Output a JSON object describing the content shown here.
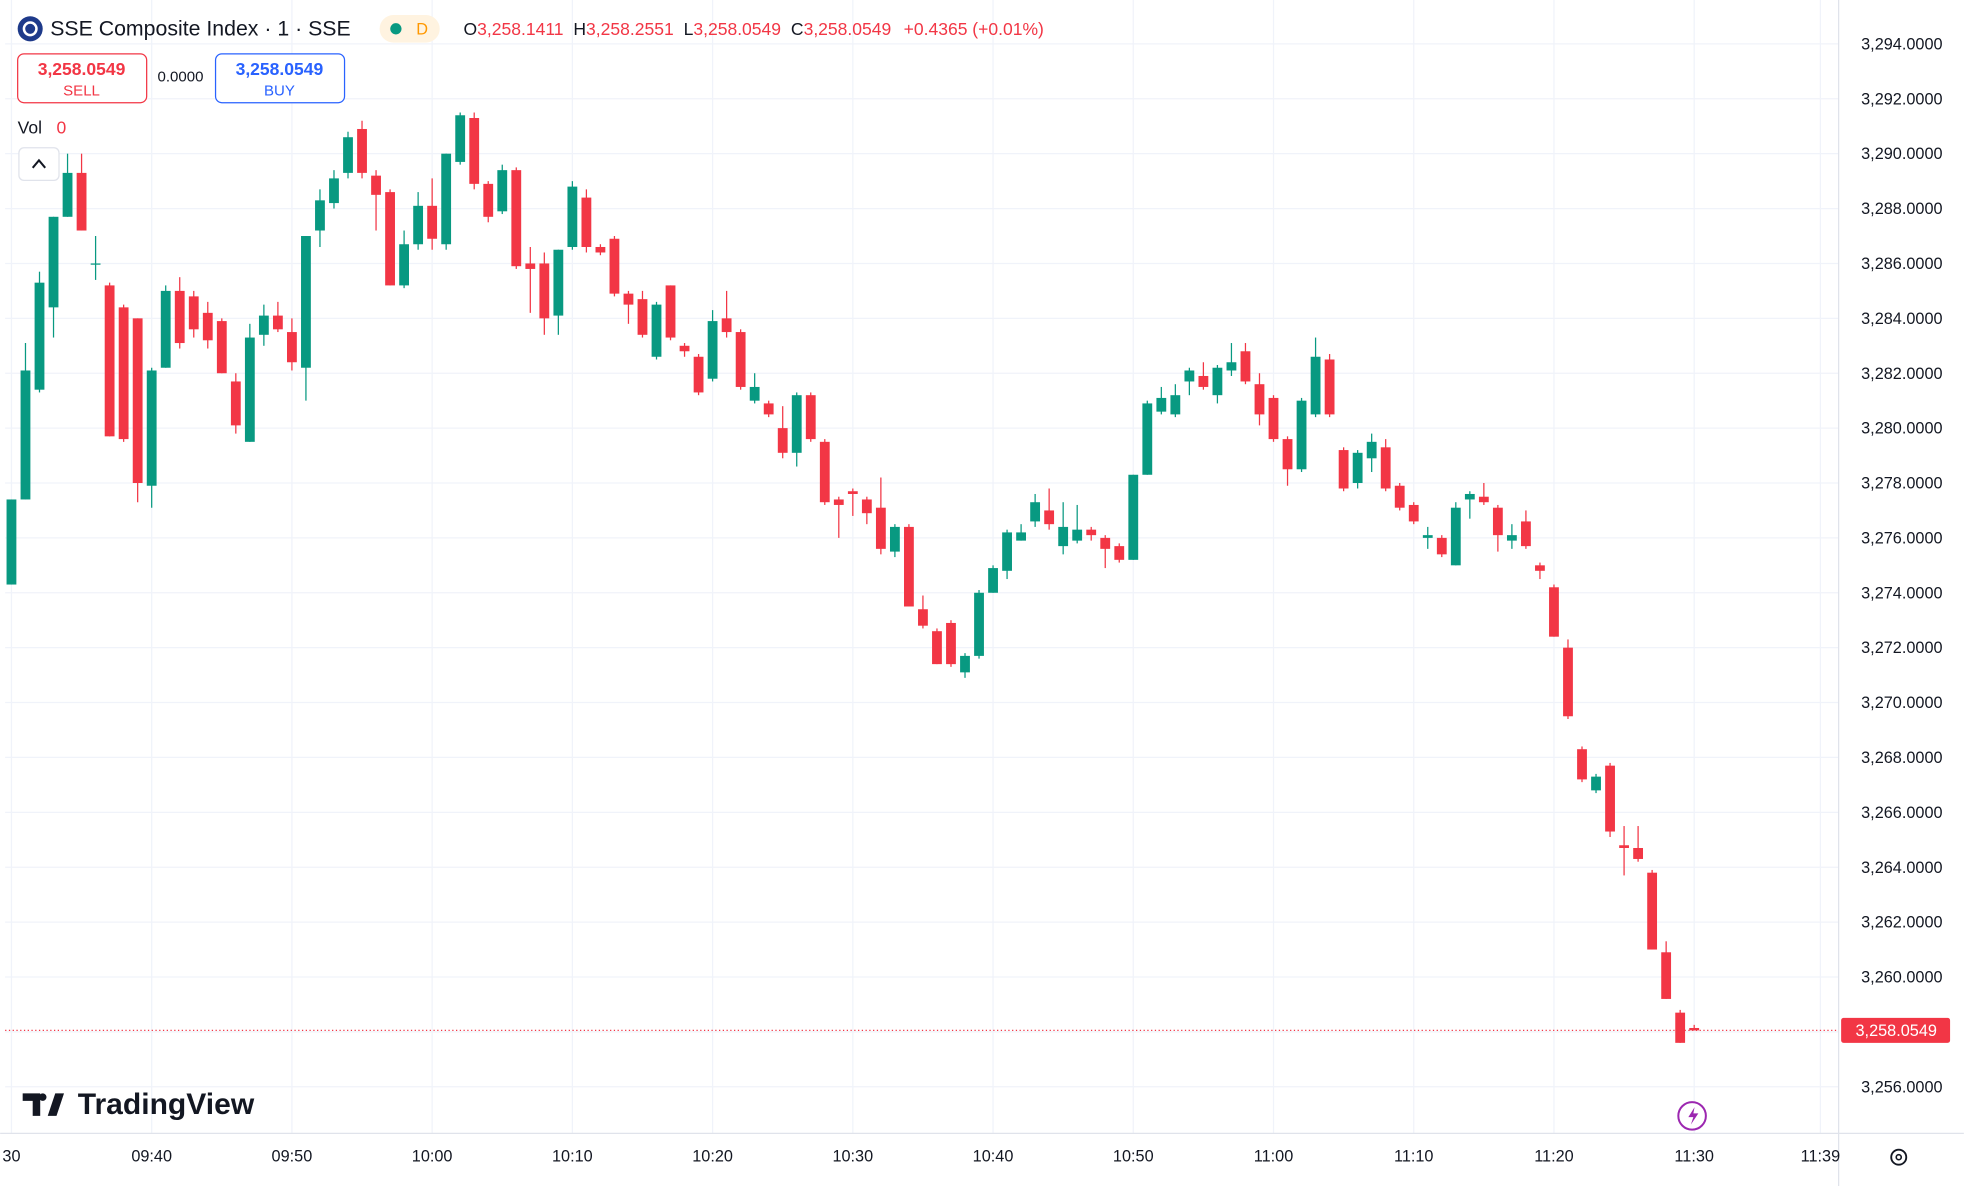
{
  "header": {
    "symbol": "SSE Composite Index · 1 · SSE",
    "status": "D",
    "o_label": "O",
    "open": "3,258.1411",
    "h_label": "H",
    "high": "3,258.2551",
    "l_label": "L",
    "low": "3,258.0549",
    "c_label": "C",
    "close": "3,258.0549",
    "change": "+0.4365 (+0.01%)"
  },
  "trade": {
    "sell_price": "3,258.0549",
    "sell": "SELL",
    "spread": "0.0000",
    "buy_price": "3,258.0549",
    "buy": "BUY"
  },
  "volume": {
    "label": "Vol",
    "value": "0"
  },
  "brand": "TradingView",
  "chart_data": {
    "type": "candlestick",
    "x": [
      570,
      571,
      572,
      573,
      574,
      575,
      576,
      577,
      578,
      579,
      580,
      581,
      582,
      583,
      584,
      585,
      586,
      587,
      588,
      589,
      590,
      591,
      592,
      593,
      594,
      595,
      596,
      597,
      598,
      599,
      600,
      601,
      602,
      603,
      604,
      605,
      606,
      607,
      608,
      609,
      610,
      611,
      612,
      613,
      614,
      615,
      616,
      617,
      618,
      619,
      620,
      621,
      622,
      623,
      624,
      625,
      626,
      627,
      628,
      629,
      630,
      631,
      632,
      633,
      634,
      635,
      636,
      637,
      638,
      639,
      640,
      641,
      642,
      643,
      644,
      645,
      646,
      647,
      648,
      649,
      650,
      651,
      652,
      653,
      654,
      655,
      656,
      657,
      658,
      659,
      660,
      661,
      662,
      663,
      664,
      665,
      666,
      667,
      668,
      669,
      670,
      671,
      672,
      673,
      674,
      675,
      676,
      677,
      678,
      679,
      680,
      681,
      682,
      683,
      684,
      685,
      686,
      687,
      688,
      689,
      690
    ],
    "open": [
      3274.3,
      3277.4,
      3281.4,
      3284.4,
      3287.7,
      3289.3,
      3286.0,
      3285.2,
      3284.4,
      3284.0,
      3277.9,
      3282.2,
      3285.0,
      3284.8,
      3284.2,
      3283.9,
      3281.7,
      3279.5,
      3283.4,
      3284.1,
      3283.5,
      3282.2,
      3287.2,
      3288.2,
      3289.3,
      3290.9,
      3289.2,
      3288.6,
      3285.2,
      3286.7,
      3288.1,
      3286.7,
      3289.7,
      3291.3,
      3288.9,
      3287.9,
      3289.4,
      3286.0,
      3286.0,
      3284.1,
      3286.6,
      3288.4,
      3286.6,
      3286.9,
      3284.9,
      3284.7,
      3282.6,
      3285.2,
      3283.0,
      3282.6,
      3281.8,
      3284.0,
      3283.5,
      3281.0,
      3280.9,
      3280.0,
      3279.1,
      3281.2,
      3279.5,
      3277.4,
      3277.7,
      3277.4,
      3277.1,
      3275.5,
      3276.4,
      3273.4,
      3272.6,
      3272.9,
      3271.1,
      3271.7,
      3274.0,
      3274.8,
      3275.9,
      3276.6,
      3277.0,
      3275.7,
      3275.9,
      3276.3,
      3276.0,
      3275.7,
      3275.2,
      3278.3,
      3280.6,
      3280.5,
      3281.7,
      3281.9,
      3281.2,
      3282.1,
      3282.8,
      3281.6,
      3281.1,
      3279.6,
      3278.5,
      3280.5,
      3282.5,
      3279.2,
      3278.0,
      3278.9,
      3279.3,
      3277.9,
      3277.2,
      3276.0,
      3276.0,
      3275.0,
      3277.4,
      3277.5,
      3277.1,
      3275.9,
      3276.6,
      3275.0,
      3274.2,
      3272.0,
      3268.3,
      3266.8,
      3267.7,
      3264.8,
      3264.7,
      3263.8,
      3260.9,
      3258.7,
      3258.1411
    ],
    "high": [
      3277.4,
      3283.1,
      3285.7,
      3287.7,
      3290.0,
      3290.0,
      3287.0,
      3285.3,
      3284.5,
      3284.0,
      3282.2,
      3285.2,
      3285.5,
      3285.0,
      3284.6,
      3284.0,
      3282.0,
      3283.8,
      3284.5,
      3284.6,
      3284.0,
      3287.0,
      3288.7,
      3289.4,
      3290.8,
      3291.2,
      3289.4,
      3288.7,
      3287.2,
      3288.6,
      3289.1,
      3290.0,
      3291.5,
      3291.5,
      3289.0,
      3289.6,
      3289.5,
      3286.6,
      3286.4,
      3286.5,
      3289.0,
      3288.7,
      3286.7,
      3287.0,
      3285.0,
      3285.0,
      3284.6,
      3285.2,
      3283.1,
      3282.7,
      3284.3,
      3285.0,
      3283.6,
      3282.0,
      3281.0,
      3280.8,
      3281.3,
      3281.3,
      3279.6,
      3277.5,
      3277.8,
      3277.5,
      3278.2,
      3276.5,
      3276.5,
      3273.9,
      3272.7,
      3273.0,
      3271.8,
      3274.1,
      3275.0,
      3276.3,
      3276.5,
      3277.6,
      3277.8,
      3277.3,
      3277.2,
      3276.4,
      3276.1,
      3275.8,
      3278.3,
      3281.0,
      3281.5,
      3281.6,
      3282.2,
      3282.4,
      3282.3,
      3283.1,
      3283.1,
      3282.0,
      3281.2,
      3279.7,
      3281.1,
      3283.3,
      3282.7,
      3279.3,
      3279.2,
      3279.8,
      3279.6,
      3278.0,
      3277.3,
      3276.4,
      3276.1,
      3277.3,
      3277.7,
      3278.0,
      3277.2,
      3276.5,
      3277.0,
      3275.1,
      3274.3,
      3272.3,
      3268.4,
      3267.4,
      3267.8,
      3265.5,
      3265.5,
      3263.9,
      3261.3,
      3258.8,
      3258.2551
    ],
    "low": [
      3274.3,
      3277.4,
      3281.3,
      3283.3,
      3287.7,
      3287.2,
      3285.4,
      3279.7,
      3279.5,
      3277.3,
      3277.1,
      3282.2,
      3282.9,
      3283.3,
      3282.9,
      3282.0,
      3279.8,
      3279.5,
      3283.0,
      3283.5,
      3282.1,
      3281.0,
      3286.6,
      3288.0,
      3289.1,
      3289.1,
      3287.2,
      3285.2,
      3285.1,
      3286.5,
      3286.5,
      3286.5,
      3289.6,
      3288.7,
      3287.5,
      3287.8,
      3285.8,
      3284.2,
      3283.4,
      3283.4,
      3286.5,
      3286.4,
      3286.3,
      3284.8,
      3283.8,
      3283.3,
      3282.5,
      3283.2,
      3282.6,
      3281.2,
      3281.7,
      3283.3,
      3281.4,
      3280.9,
      3280.4,
      3278.9,
      3278.6,
      3279.5,
      3277.2,
      3276.0,
      3276.8,
      3276.5,
      3275.4,
      3275.3,
      3273.5,
      3272.7,
      3271.4,
      3271.3,
      3270.9,
      3271.6,
      3274.0,
      3274.5,
      3275.9,
      3276.4,
      3276.3,
      3275.4,
      3275.8,
      3275.9,
      3274.9,
      3275.1,
      3275.2,
      3278.3,
      3280.5,
      3280.4,
      3281.2,
      3281.4,
      3280.9,
      3281.9,
      3281.6,
      3280.1,
      3279.5,
      3277.9,
      3278.4,
      3280.4,
      3280.4,
      3277.7,
      3277.8,
      3278.4,
      3277.7,
      3277.0,
      3276.5,
      3275.6,
      3275.3,
      3275.0,
      3276.7,
      3277.2,
      3275.5,
      3275.6,
      3275.6,
      3274.5,
      3272.4,
      3269.4,
      3267.1,
      3266.7,
      3265.1,
      3263.7,
      3264.2,
      3261.0,
      3259.2,
      3257.6,
      3258.0549
    ],
    "close": [
      3277.4,
      3282.1,
      3285.3,
      3287.7,
      3289.3,
      3287.2,
      3286.0,
      3279.7,
      3279.6,
      3278.0,
      3282.1,
      3285.0,
      3283.1,
      3283.6,
      3283.2,
      3282.0,
      3280.1,
      3283.3,
      3284.1,
      3283.6,
      3282.4,
      3287.0,
      3288.3,
      3289.1,
      3290.6,
      3289.3,
      3288.5,
      3285.2,
      3286.7,
      3288.1,
      3286.9,
      3290.0,
      3291.4,
      3288.9,
      3287.7,
      3289.4,
      3285.9,
      3285.8,
      3284.0,
      3286.5,
      3288.8,
      3286.6,
      3286.4,
      3284.9,
      3284.5,
      3283.4,
      3284.5,
      3283.3,
      3282.8,
      3281.3,
      3283.9,
      3283.5,
      3281.5,
      3281.5,
      3280.5,
      3279.1,
      3281.2,
      3279.6,
      3277.3,
      3277.2,
      3277.6,
      3276.9,
      3275.6,
      3276.4,
      3273.5,
      3272.8,
      3271.4,
      3271.4,
      3271.7,
      3274.0,
      3274.9,
      3276.2,
      3276.2,
      3277.3,
      3276.5,
      3276.4,
      3276.3,
      3276.1,
      3275.6,
      3275.2,
      3278.3,
      3280.9,
      3281.1,
      3281.2,
      3282.1,
      3281.5,
      3282.2,
      3282.4,
      3281.7,
      3280.5,
      3279.6,
      3278.5,
      3281.0,
      3282.6,
      3280.5,
      3277.8,
      3279.1,
      3279.5,
      3277.8,
      3277.1,
      3276.6,
      3276.1,
      3275.4,
      3277.1,
      3277.6,
      3277.3,
      3276.1,
      3276.1,
      3275.7,
      3274.8,
      3272.4,
      3269.5,
      3267.2,
      3267.3,
      3265.3,
      3264.7,
      3264.3,
      3261.0,
      3259.2,
      3257.6,
      3258.0549
    ],
    "up_color": "#089981",
    "down_color": "#f23645",
    "xlim": [
      569.55,
      700.3
    ],
    "ylim": [
      3254.3,
      3295.6
    ],
    "xticks": [
      {
        "value": 570,
        "label": "30"
      },
      {
        "value": 580,
        "label": "09:40"
      },
      {
        "value": 590,
        "label": "09:50"
      },
      {
        "value": 600,
        "label": "10:00"
      },
      {
        "value": 610,
        "label": "10:10"
      },
      {
        "value": 620,
        "label": "10:20"
      },
      {
        "value": 630,
        "label": "10:30"
      },
      {
        "value": 640,
        "label": "10:40"
      },
      {
        "value": 650,
        "label": "10:50"
      },
      {
        "value": 660,
        "label": "11:00"
      },
      {
        "value": 670,
        "label": "11:10"
      },
      {
        "value": 680,
        "label": "11:20"
      },
      {
        "value": 690,
        "label": "11:30"
      },
      {
        "value": 699,
        "label": "11:39"
      }
    ],
    "yticks": [
      {
        "value": 3256,
        "label": "3,256.0000"
      },
      {
        "value": 3258,
        "label": "3,258.0000"
      },
      {
        "value": 3260,
        "label": "3,260.0000"
      },
      {
        "value": 3262,
        "label": "3,262.0000"
      },
      {
        "value": 3264,
        "label": "3,264.0000"
      },
      {
        "value": 3266,
        "label": "3,266.0000"
      },
      {
        "value": 3268,
        "label": "3,268.0000"
      },
      {
        "value": 3270,
        "label": "3,270.0000"
      },
      {
        "value": 3272,
        "label": "3,272.0000"
      },
      {
        "value": 3274,
        "label": "3,274.0000"
      },
      {
        "value": 3276,
        "label": "3,276.0000"
      },
      {
        "value": 3278,
        "label": "3,278.0000"
      },
      {
        "value": 3280,
        "label": "3,280.0000"
      },
      {
        "value": 3282,
        "label": "3,282.0000"
      },
      {
        "value": 3284,
        "label": "3,284.0000"
      },
      {
        "value": 3286,
        "label": "3,286.0000"
      },
      {
        "value": 3288,
        "label": "3,288.0000"
      },
      {
        "value": 3290,
        "label": "3,290.0000"
      },
      {
        "value": 3292,
        "label": "3,292.0000"
      },
      {
        "value": 3294,
        "label": "3,294.0000"
      }
    ],
    "grid": true,
    "last_price_label": "3,258.0549"
  }
}
